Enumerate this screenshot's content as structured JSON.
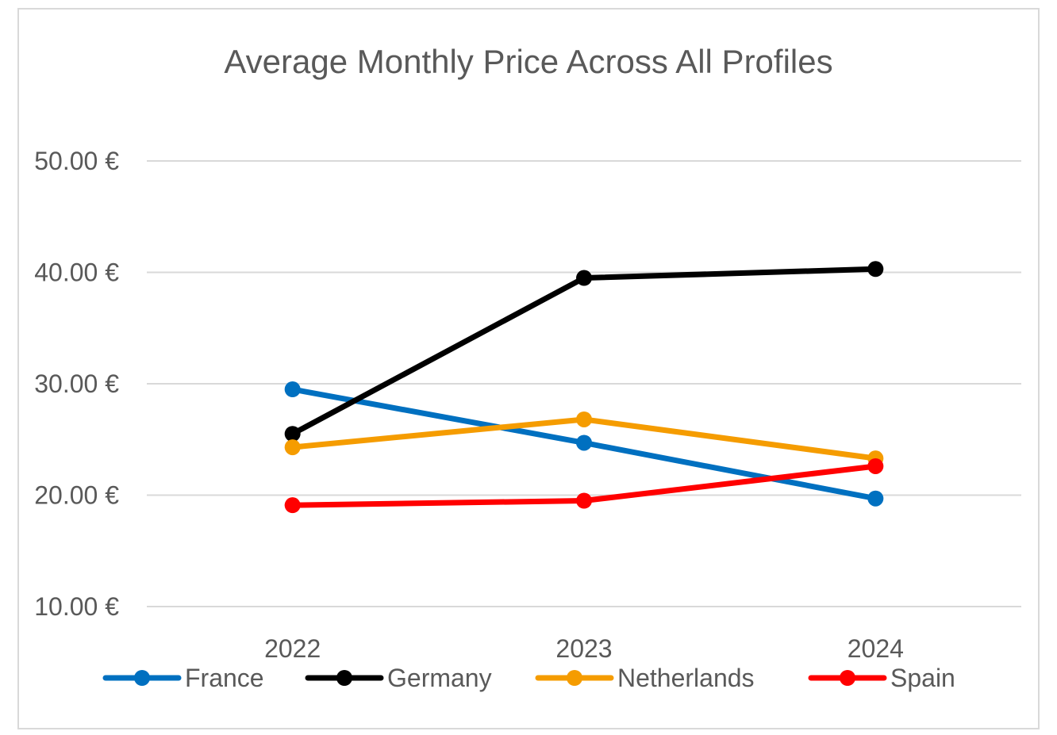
{
  "chart_data": {
    "type": "line",
    "title": "Average Monthly Price Across All Profiles",
    "xlabel": "",
    "ylabel": "",
    "categories": [
      "2022",
      "2023",
      "2024"
    ],
    "ylim": [
      10,
      50
    ],
    "yticks": [
      10,
      20,
      30,
      40,
      50
    ],
    "ytick_labels": [
      "10.00 €",
      "20.00 €",
      "30.00 €",
      "40.00 €",
      "50.00 €"
    ],
    "grid": true,
    "legend_position": "bottom",
    "series": [
      {
        "name": "France",
        "color": "#0070c0",
        "values": [
          29.5,
          24.7,
          19.7
        ]
      },
      {
        "name": "Germany",
        "color": "#000000",
        "values": [
          25.5,
          39.5,
          40.3
        ]
      },
      {
        "name": "Netherlands",
        "color": "#f59c00",
        "values": [
          24.3,
          26.8,
          23.3
        ]
      },
      {
        "name": "Spain",
        "color": "#ff0000",
        "values": [
          19.1,
          19.5,
          22.6
        ]
      }
    ]
  }
}
